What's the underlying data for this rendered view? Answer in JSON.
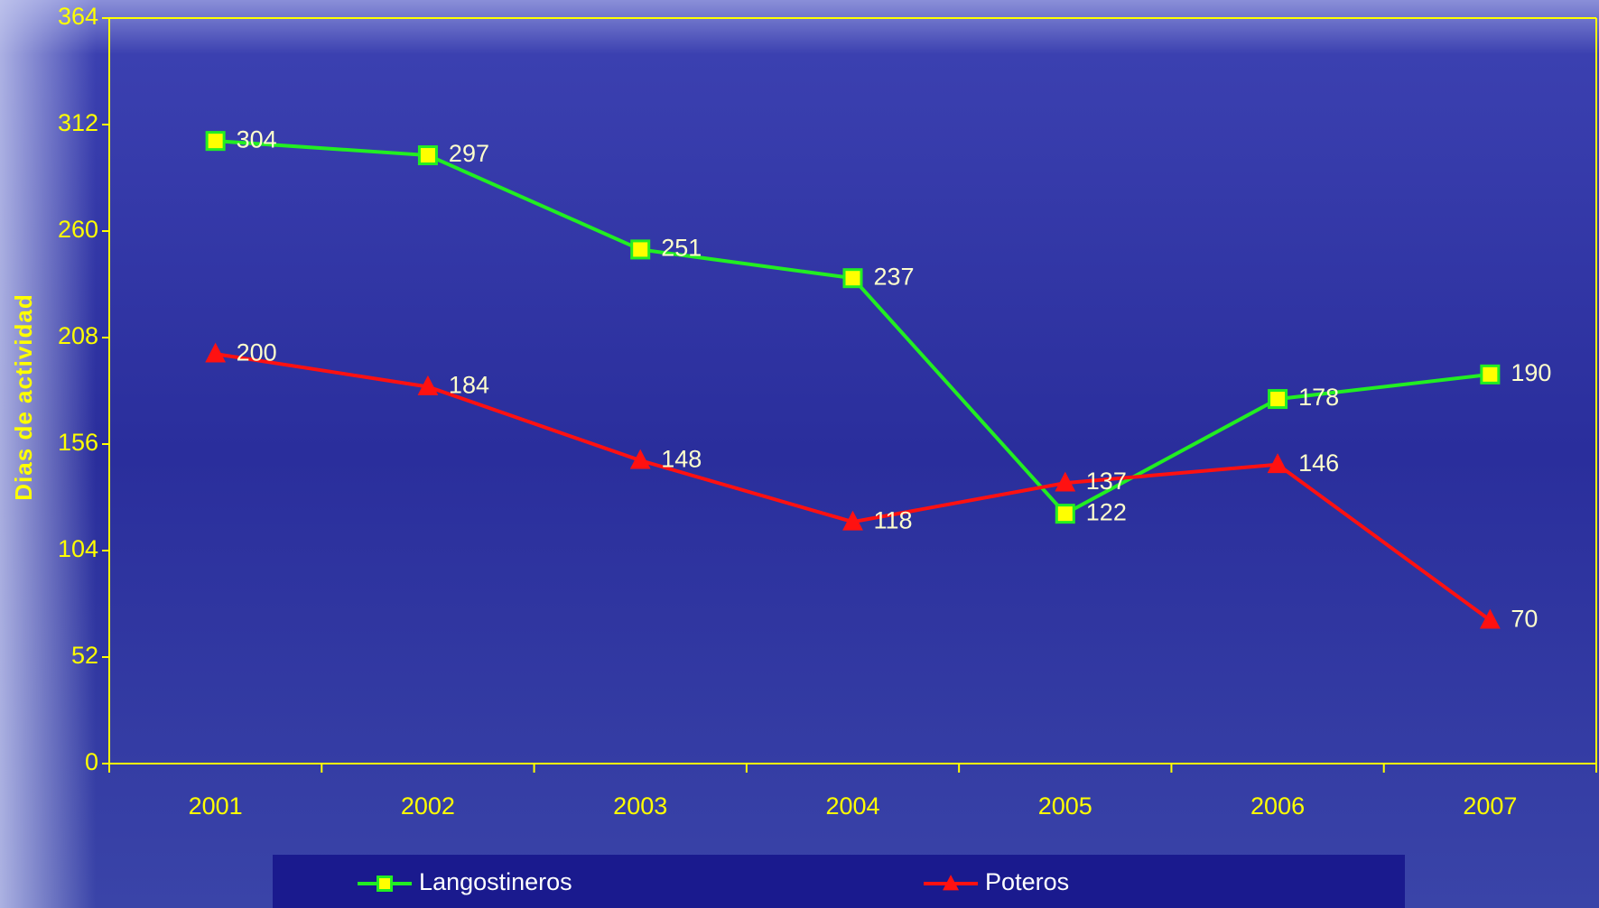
{
  "chart_data": {
    "type": "line",
    "y_axis_label": "Dias de actividad",
    "categories": [
      "2001",
      "2002",
      "2003",
      "2004",
      "2005",
      "2006",
      "2007"
    ],
    "series": [
      {
        "name": "Langostineros",
        "color": "#22ee22",
        "marker": "square",
        "marker_fill": "#ffff00",
        "values": [
          304,
          297,
          251,
          237,
          122,
          178,
          190
        ]
      },
      {
        "name": "Poteros",
        "color": "#ff1111",
        "marker": "triangle",
        "marker_fill": "#ff1111",
        "values": [
          200,
          184,
          148,
          118,
          137,
          146,
          70
        ]
      }
    ],
    "ylim": [
      0,
      364
    ],
    "yticks": [
      0,
      52,
      104,
      156,
      208,
      260,
      312,
      364
    ],
    "legend": "bottom",
    "axis_color": "#ffff00"
  }
}
